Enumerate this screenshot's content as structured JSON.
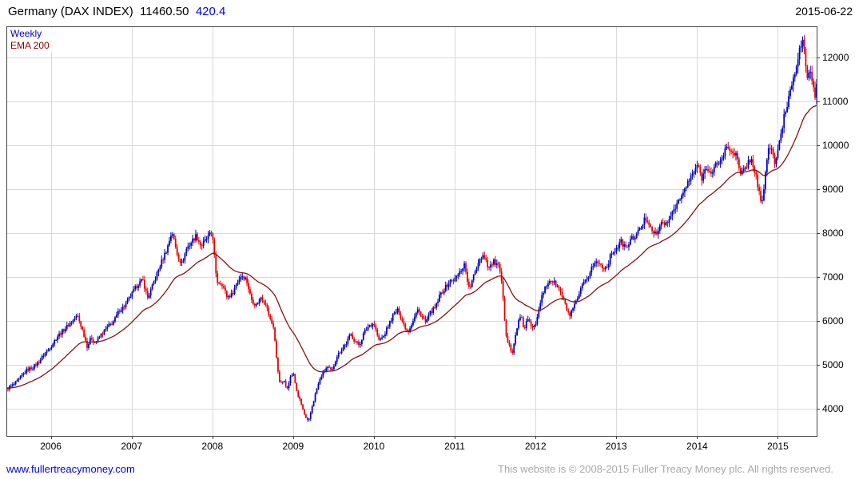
{
  "header": {
    "title": "Germany (DAX INDEX)",
    "last_price": "11460.50",
    "change": "420.4",
    "date": "2015-06-22"
  },
  "legend": {
    "series_label": "Weekly",
    "ema_label": "EMA 200"
  },
  "footer": {
    "site_link": "www.fullertreacymoney.com",
    "copyright": "This website is © 2008-2015 Fuller Treacy Money plc. All rights reserved."
  },
  "colors": {
    "up": "#0000cc",
    "down": "#e60000",
    "ema": "#8b1010",
    "grid": "#d9d9d9",
    "border": "#444444",
    "change_text": "#0000ee",
    "link_text": "#0000ee",
    "copyright_text": "#a9a9a9"
  },
  "chart_data": {
    "type": "candlestick",
    "title": "Germany (DAX INDEX) weekly with 200-day EMA",
    "scale": "linear",
    "grid": true,
    "legend_entries": [
      "Weekly",
      "EMA 200"
    ],
    "x_range": [
      2005.45,
      2015.48
    ],
    "ylim": [
      3380,
      12700
    ],
    "y_ticks": [
      4000,
      5000,
      6000,
      7000,
      8000,
      9000,
      10000,
      11000,
      12000
    ],
    "x_ticks": [
      2006,
      2007,
      2008,
      2009,
      2010,
      2011,
      2012,
      2013,
      2014,
      2015
    ],
    "last_close": 11460.5,
    "last_change": 420.4,
    "ema_period_weeks": 40,
    "anchors_format": "[decimal_year, approx_weekly_close]",
    "anchors": [
      [
        2005.45,
        4450
      ],
      [
        2005.55,
        4560
      ],
      [
        2005.62,
        4700
      ],
      [
        2005.7,
        4880
      ],
      [
        2005.78,
        4950
      ],
      [
        2005.85,
        5060
      ],
      [
        2005.92,
        5250
      ],
      [
        2006.0,
        5420
      ],
      [
        2006.08,
        5650
      ],
      [
        2006.16,
        5800
      ],
      [
        2006.24,
        5950
      ],
      [
        2006.33,
        6120
      ],
      [
        2006.4,
        5750
      ],
      [
        2006.45,
        5420
      ],
      [
        2006.5,
        5620
      ],
      [
        2006.55,
        5500
      ],
      [
        2006.62,
        5680
      ],
      [
        2006.7,
        5850
      ],
      [
        2006.78,
        5990
      ],
      [
        2006.85,
        6250
      ],
      [
        2006.92,
        6350
      ],
      [
        2007.0,
        6600
      ],
      [
        2007.08,
        6850
      ],
      [
        2007.14,
        6920
      ],
      [
        2007.2,
        6520
      ],
      [
        2007.28,
        6900
      ],
      [
        2007.36,
        7300
      ],
      [
        2007.44,
        7650
      ],
      [
        2007.5,
        8050
      ],
      [
        2007.56,
        7550
      ],
      [
        2007.62,
        7300
      ],
      [
        2007.68,
        7650
      ],
      [
        2007.74,
        7800
      ],
      [
        2007.8,
        7950
      ],
      [
        2007.86,
        7700
      ],
      [
        2007.92,
        7850
      ],
      [
        2008.0,
        8020
      ],
      [
        2008.05,
        6900
      ],
      [
        2008.12,
        6850
      ],
      [
        2008.18,
        6550
      ],
      [
        2008.24,
        6600
      ],
      [
        2008.3,
        6850
      ],
      [
        2008.36,
        7050
      ],
      [
        2008.42,
        6950
      ],
      [
        2008.48,
        6500
      ],
      [
        2008.54,
        6350
      ],
      [
        2008.6,
        6550
      ],
      [
        2008.66,
        6400
      ],
      [
        2008.71,
        6050
      ],
      [
        2008.76,
        5850
      ],
      [
        2008.8,
        5000
      ],
      [
        2008.84,
        4550
      ],
      [
        2008.88,
        4650
      ],
      [
        2008.92,
        4450
      ],
      [
        2008.96,
        4700
      ],
      [
        2009.0,
        4810
      ],
      [
        2009.05,
        4350
      ],
      [
        2009.1,
        4100
      ],
      [
        2009.15,
        3800
      ],
      [
        2009.19,
        3690
      ],
      [
        2009.24,
        4100
      ],
      [
        2009.3,
        4500
      ],
      [
        2009.36,
        4800
      ],
      [
        2009.42,
        4950
      ],
      [
        2009.48,
        4850
      ],
      [
        2009.54,
        5200
      ],
      [
        2009.6,
        5350
      ],
      [
        2009.66,
        5500
      ],
      [
        2009.71,
        5700
      ],
      [
        2009.76,
        5550
      ],
      [
        2009.82,
        5450
      ],
      [
        2009.88,
        5750
      ],
      [
        2009.94,
        5900
      ],
      [
        2010.0,
        5950
      ],
      [
        2010.06,
        5550
      ],
      [
        2010.12,
        5650
      ],
      [
        2010.18,
        5900
      ],
      [
        2010.24,
        6150
      ],
      [
        2010.3,
        6250
      ],
      [
        2010.36,
        5950
      ],
      [
        2010.42,
        5750
      ],
      [
        2010.48,
        6000
      ],
      [
        2010.54,
        6250
      ],
      [
        2010.6,
        6100
      ],
      [
        2010.64,
        5950
      ],
      [
        2010.7,
        6200
      ],
      [
        2010.76,
        6300
      ],
      [
        2010.82,
        6600
      ],
      [
        2010.88,
        6750
      ],
      [
        2010.94,
        6900
      ],
      [
        2011.0,
        6950
      ],
      [
        2011.06,
        7100
      ],
      [
        2011.12,
        7300
      ],
      [
        2011.18,
        6700
      ],
      [
        2011.24,
        7050
      ],
      [
        2011.3,
        7400
      ],
      [
        2011.36,
        7520
      ],
      [
        2011.42,
        7200
      ],
      [
        2011.48,
        7350
      ],
      [
        2011.54,
        7250
      ],
      [
        2011.58,
        6900
      ],
      [
        2011.61,
        6200
      ],
      [
        2011.64,
        5650
      ],
      [
        2011.68,
        5450
      ],
      [
        2011.71,
        5200
      ],
      [
        2011.74,
        5550
      ],
      [
        2011.78,
        5950
      ],
      [
        2011.82,
        6100
      ],
      [
        2011.86,
        5800
      ],
      [
        2011.9,
        6050
      ],
      [
        2011.95,
        5850
      ],
      [
        2012.0,
        5950
      ],
      [
        2012.06,
        6450
      ],
      [
        2012.12,
        6750
      ],
      [
        2012.18,
        6950
      ],
      [
        2012.24,
        6850
      ],
      [
        2012.3,
        6700
      ],
      [
        2012.36,
        6400
      ],
      [
        2012.42,
        6100
      ],
      [
        2012.46,
        6250
      ],
      [
        2012.52,
        6500
      ],
      [
        2012.58,
        6800
      ],
      [
        2012.64,
        6950
      ],
      [
        2012.7,
        7250
      ],
      [
        2012.76,
        7350
      ],
      [
        2012.82,
        7250
      ],
      [
        2012.88,
        7200
      ],
      [
        2012.94,
        7550
      ],
      [
        2013.0,
        7650
      ],
      [
        2013.06,
        7800
      ],
      [
        2013.12,
        7650
      ],
      [
        2013.18,
        7850
      ],
      [
        2013.24,
        7950
      ],
      [
        2013.3,
        8100
      ],
      [
        2013.36,
        8350
      ],
      [
        2013.42,
        8200
      ],
      [
        2013.47,
        7950
      ],
      [
        2013.52,
        8050
      ],
      [
        2013.58,
        8300
      ],
      [
        2013.63,
        8150
      ],
      [
        2013.68,
        8450
      ],
      [
        2013.74,
        8650
      ],
      [
        2013.8,
        8800
      ],
      [
        2013.86,
        9050
      ],
      [
        2013.92,
        9250
      ],
      [
        2014.0,
        9550
      ],
      [
        2014.06,
        9250
      ],
      [
        2014.12,
        9550
      ],
      [
        2014.18,
        9300
      ],
      [
        2014.24,
        9600
      ],
      [
        2014.3,
        9650
      ],
      [
        2014.36,
        9950
      ],
      [
        2014.42,
        9900
      ],
      [
        2014.48,
        9800
      ],
      [
        2014.54,
        9300
      ],
      [
        2014.6,
        9500
      ],
      [
        2014.66,
        9700
      ],
      [
        2014.72,
        9400
      ],
      [
        2014.77,
        8900
      ],
      [
        2014.8,
        8550
      ],
      [
        2014.84,
        9300
      ],
      [
        2014.88,
        9900
      ],
      [
        2014.92,
        9950
      ],
      [
        2014.96,
        9600
      ],
      [
        2015.0,
        9850
      ],
      [
        2015.04,
        10250
      ],
      [
        2015.08,
        10700
      ],
      [
        2015.12,
        10950
      ],
      [
        2015.16,
        11350
      ],
      [
        2015.2,
        11600
      ],
      [
        2015.24,
        11950
      ],
      [
        2015.28,
        12250
      ],
      [
        2015.31,
        12350
      ],
      [
        2015.34,
        11900
      ],
      [
        2015.37,
        11550
      ],
      [
        2015.4,
        11750
      ],
      [
        2015.43,
        11350
      ],
      [
        2015.46,
        11050
      ],
      [
        2015.48,
        11460
      ]
    ]
  }
}
